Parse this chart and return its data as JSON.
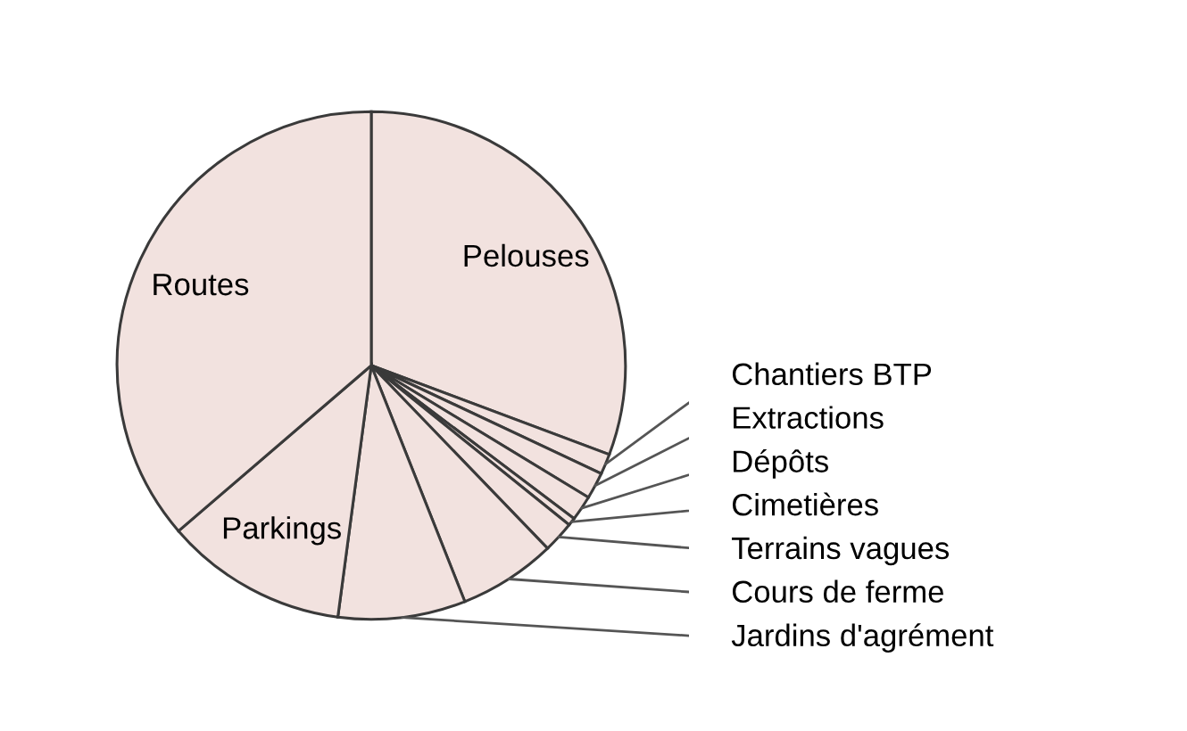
{
  "chart_data": {
    "type": "pie",
    "categories": [
      "Pelouses",
      "Chantiers BTP",
      "Extractions",
      "Dépôts",
      "Cimetières",
      "Terrains vagues",
      "Cours de ferme",
      "Jardins d'agrément",
      "Parkings",
      "Routes"
    ],
    "values": [
      30.7,
      1.3,
      1.7,
      1.6,
      0.5,
      2.0,
      6.2,
      8.1,
      11.6,
      36.3
    ],
    "colors": [
      "#f2e2df",
      "#f2e2df",
      "#f2e2df",
      "#f2e2df",
      "#f2e2df",
      "#f2e2df",
      "#f2e2df",
      "#f2e2df",
      "#f2e2df",
      "#f2e2df"
    ]
  }
}
